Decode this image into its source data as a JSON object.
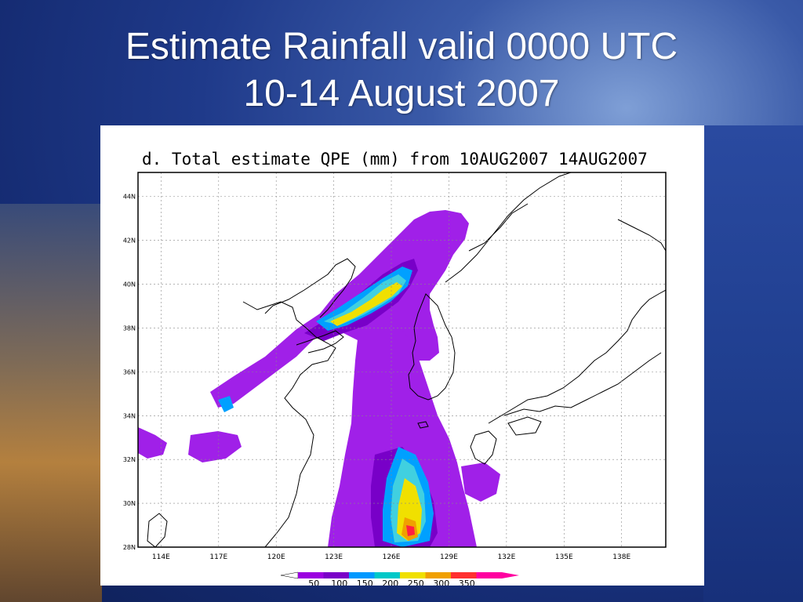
{
  "slide": {
    "title_line1": "Estimate Rainfall valid 0000 UTC",
    "title_line2": "10-14 August 2007"
  },
  "map": {
    "title": "d. Total estimate QPE (mm) from 10AUG2007 14AUG2007",
    "lon_ticks": [
      "114E",
      "117E",
      "120E",
      "123E",
      "126E",
      "129E",
      "132E",
      "135E",
      "138E"
    ],
    "lat_ticks": [
      "44N",
      "42N",
      "40N",
      "38N",
      "36N",
      "34N",
      "32N",
      "30N",
      "28N"
    ],
    "extent": {
      "lon_min": 112.8,
      "lon_max": 140.3,
      "lat_min": 28,
      "lat_max": 45.1
    },
    "colorbar": {
      "labels": [
        "50",
        "100",
        "150",
        "200",
        "250",
        "300",
        "350"
      ],
      "colors": [
        "#9b00e0",
        "#7a00c8",
        "#0099ff",
        "#00c8c8",
        "#f0e000",
        "#f0a000",
        "#ff3030",
        "#ff00a0"
      ]
    },
    "rain_colors": {
      "50": "#a020e8",
      "100": "#7800c8",
      "150": "#00a0ff",
      "200": "#40d0e0",
      "250": "#f0e000",
      "300": "#f0a000",
      "350": "#ff2040"
    }
  }
}
